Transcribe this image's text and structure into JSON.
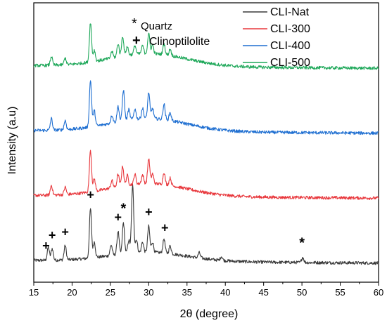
{
  "chart_data": {
    "type": "line",
    "title": "",
    "xlabel": "2θ (degree)",
    "ylabel": "Intensity (a.u)",
    "xlim": [
      15,
      60
    ],
    "x_ticks": [
      "15",
      "20",
      "25",
      "30",
      "35",
      "40",
      "45",
      "50",
      "55",
      "60"
    ],
    "grid": false,
    "legend_position": "top-right",
    "series": [
      {
        "name": "CLI-Nat",
        "color": "#3a3a3a",
        "offset": 0.0,
        "baseline": 0.035,
        "hump": 0.035,
        "scale": 1.0,
        "peaks": [
          [
            16.9,
            0.05
          ],
          [
            17.4,
            0.045
          ],
          [
            19.1,
            0.055
          ],
          [
            22.4,
            0.19
          ],
          [
            22.9,
            0.06
          ],
          [
            25.1,
            0.04
          ],
          [
            26.0,
            0.09
          ],
          [
            26.7,
            0.12
          ],
          [
            27.4,
            0.05
          ],
          [
            27.9,
            0.26
          ],
          [
            28.4,
            0.05
          ],
          [
            29.2,
            0.04
          ],
          [
            30.0,
            0.1
          ],
          [
            30.5,
            0.04
          ],
          [
            32.0,
            0.055
          ],
          [
            32.8,
            0.03
          ],
          [
            36.6,
            0.02
          ],
          [
            39.5,
            0.015
          ],
          [
            50.1,
            0.02
          ]
        ]
      },
      {
        "name": "CLI-300",
        "color": "#e8383d",
        "offset": 0.25,
        "baseline": 0.035,
        "hump": 0.05,
        "scale": 0.95,
        "peaks": [
          [
            17.3,
            0.04
          ],
          [
            19.1,
            0.03
          ],
          [
            22.4,
            0.17
          ],
          [
            22.9,
            0.05
          ],
          [
            25.2,
            0.03
          ],
          [
            26.0,
            0.05
          ],
          [
            26.6,
            0.08
          ],
          [
            27.2,
            0.04
          ],
          [
            28.2,
            0.04
          ],
          [
            29.2,
            0.035
          ],
          [
            30.0,
            0.1
          ],
          [
            30.5,
            0.04
          ],
          [
            32.0,
            0.05
          ],
          [
            32.8,
            0.03
          ]
        ]
      },
      {
        "name": "CLI-400",
        "color": "#1f6fd1",
        "offset": 0.5,
        "baseline": 0.035,
        "hump": 0.05,
        "scale": 1.0,
        "peaks": [
          [
            17.3,
            0.045
          ],
          [
            19.1,
            0.035
          ],
          [
            22.4,
            0.18
          ],
          [
            22.9,
            0.06
          ],
          [
            25.2,
            0.03
          ],
          [
            26.0,
            0.06
          ],
          [
            26.7,
            0.12
          ],
          [
            27.4,
            0.04
          ],
          [
            28.2,
            0.04
          ],
          [
            29.2,
            0.04
          ],
          [
            30.0,
            0.1
          ],
          [
            30.5,
            0.04
          ],
          [
            32.0,
            0.06
          ],
          [
            32.8,
            0.03
          ]
        ]
      },
      {
        "name": "CLI-500",
        "color": "#1fa85a",
        "offset": 0.75,
        "baseline": 0.035,
        "hump": 0.05,
        "scale": 0.85,
        "peaks": [
          [
            17.3,
            0.04
          ],
          [
            19.1,
            0.03
          ],
          [
            22.4,
            0.18
          ],
          [
            22.9,
            0.05
          ],
          [
            25.2,
            0.03
          ],
          [
            26.0,
            0.06
          ],
          [
            26.6,
            0.09
          ],
          [
            27.2,
            0.04
          ],
          [
            28.2,
            0.04
          ],
          [
            29.2,
            0.035
          ],
          [
            30.0,
            0.09
          ],
          [
            30.5,
            0.04
          ],
          [
            32.0,
            0.05
          ],
          [
            32.8,
            0.03
          ]
        ]
      }
    ],
    "key": [
      {
        "symbol": "*",
        "label": "Quartz"
      },
      {
        "symbol": "+",
        "label": "Clinoptilolite"
      }
    ],
    "peak_markers": [
      {
        "symbol": "+",
        "x": 16.6
      },
      {
        "symbol": "+",
        "x": 17.4
      },
      {
        "symbol": "+",
        "x": 19.1
      },
      {
        "symbol": "+",
        "x": 22.4
      },
      {
        "symbol": "+",
        "x": 26.0
      },
      {
        "symbol": "*",
        "x": 26.7
      },
      {
        "symbol": "+",
        "x": 30.0
      },
      {
        "symbol": "+",
        "x": 32.1
      },
      {
        "symbol": "*",
        "x": 50.0
      }
    ]
  }
}
